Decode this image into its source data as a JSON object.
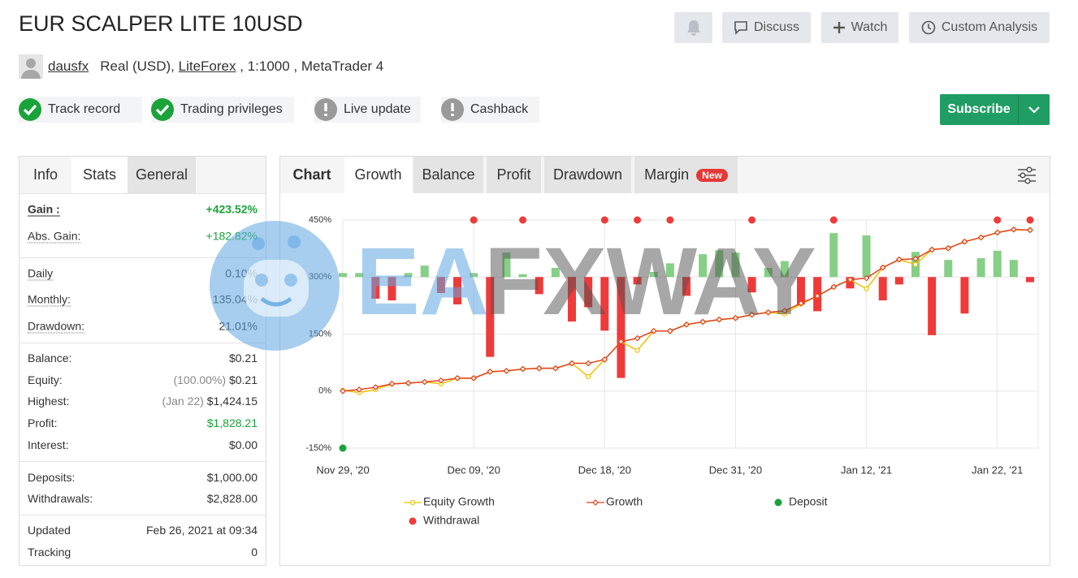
{
  "header": {
    "title": "EUR SCALPER LITE 10USD",
    "buttons": [
      "Discuss",
      "Watch",
      "Custom Analysis"
    ]
  },
  "account": {
    "user": "dausfx",
    "type": "Real (USD),",
    "broker": "LiteForex",
    "details": ", 1:1000 , MetaTrader 4"
  },
  "badges": [
    {
      "label": "Track record",
      "status": "ok"
    },
    {
      "label": "Trading privileges",
      "status": "ok"
    },
    {
      "label": "Live update",
      "status": "warn"
    },
    {
      "label": "Cashback",
      "status": "warn"
    }
  ],
  "subscribe": "Subscribe",
  "stats": {
    "tabs": [
      "Info",
      "Stats",
      "General"
    ],
    "groups": [
      [
        {
          "label": "Gain :",
          "value": "+423.52%",
          "color": "#1aa33b"
        },
        {
          "label": "Abs. Gain:",
          "value": "+182.82%",
          "color": "#1aa33b"
        }
      ],
      [
        {
          "label": "Daily",
          "value": "0.10%"
        },
        {
          "label": "Monthly:",
          "value": "135.04%"
        },
        {
          "label": "Drawdown:",
          "value": "21.01%"
        }
      ],
      [
        {
          "label": "Balance:",
          "value": "$0.21"
        },
        {
          "label": "Equity:",
          "note": "(100.00%)",
          "value": "$0.21"
        },
        {
          "label": "Highest:",
          "note": "(Jan 22)",
          "value": "$1,424.15"
        },
        {
          "label": "Profit:",
          "value": "$1,828.21",
          "color": "#1aa33b"
        },
        {
          "label": "Interest:",
          "value": "$0.00"
        }
      ],
      [
        {
          "label": "Deposits:",
          "value": "$1,000.00"
        },
        {
          "label": "Withdrawals:",
          "value": "$2,828.00"
        }
      ],
      [
        {
          "label": "Updated",
          "value": "Feb 26, 2021 at 09:34"
        },
        {
          "label": "Tracking",
          "value": "0"
        }
      ]
    ]
  },
  "chart_panel": {
    "tabs": [
      "Chart",
      "Growth",
      "Balance",
      "Profit",
      "Drawdown",
      "Margin"
    ],
    "new_badge": "New"
  },
  "watermark": [
    "EA",
    "FXWAY"
  ],
  "chart_data": {
    "type": "line",
    "categories": [
      "Nov 29, '20",
      null,
      null,
      null,
      null,
      null,
      null,
      null,
      "Dec 09, '20",
      null,
      null,
      null,
      null,
      null,
      null,
      null,
      "Dec 18, '20",
      null,
      null,
      null,
      null,
      null,
      null,
      null,
      "Dec 31, '20",
      null,
      null,
      null,
      null,
      null,
      null,
      null,
      "Jan 12, '21",
      null,
      null,
      null,
      null,
      null,
      null,
      null,
      "Jan 22, '21",
      null,
      null
    ],
    "ylim": [
      -150,
      450
    ],
    "yticks": [
      {
        "value": -150,
        "label": "-150%"
      },
      {
        "value": 0,
        "label": "0%"
      },
      {
        "value": 150,
        "label": "150%"
      },
      {
        "value": 300,
        "label": "300%"
      },
      {
        "value": 450,
        "label": "450%"
      }
    ],
    "y2lim": [
      -30,
      10
    ],
    "grid": true,
    "legend": "bottom",
    "bars": {
      "axis": "y2",
      "up_color": "#86cf86",
      "down_color": "#f03a3a",
      "values": [
        0.7,
        0.7,
        -3.8,
        -4.1,
        0.7,
        2.0,
        -2.8,
        -4.8,
        0.7,
        -14,
        4.3,
        0.5,
        -3,
        1.6,
        -7.8,
        -5.3,
        -9.4,
        -17.7,
        -1.3,
        0.9,
        2.4,
        -3.3,
        4.0,
        4.7,
        4.3,
        -2.7,
        1.6,
        2.8,
        -4.8,
        -6.0,
        7.7,
        -2.0,
        7.3,
        -4.1,
        -1.3,
        4.4,
        -10.2,
        3.0,
        -6.4,
        3.3,
        4.6,
        3.0,
        -0.9
      ]
    },
    "series": [
      {
        "name": "Equity Growth",
        "color": "#f2c200",
        "type": "line",
        "marker": "circle",
        "values": [
          2,
          -4,
          4,
          19,
          21,
          24,
          19,
          34,
          34,
          51,
          53,
          58,
          60,
          60,
          73,
          38,
          83,
          130,
          107,
          158,
          158,
          175,
          182,
          188,
          192,
          201,
          207,
          203,
          229,
          250,
          274,
          293,
          269,
          325,
          346,
          333,
          372,
          376,
          393,
          404,
          417,
          425,
          423.52
        ]
      },
      {
        "name": "Growth",
        "color": "#e2401c",
        "type": "line",
        "marker": "diamond",
        "values": [
          0,
          4,
          10,
          19,
          21,
          24,
          28,
          34,
          34,
          51,
          53,
          58,
          60,
          60,
          73,
          73,
          83,
          130,
          139,
          158,
          158,
          175,
          182,
          188,
          192,
          201,
          207,
          211,
          231,
          250,
          274,
          293,
          297,
          325,
          346,
          348,
          372,
          376,
          393,
          404,
          417,
          425,
          423.52
        ]
      },
      {
        "name": "Deposit",
        "color": "#1aa33b",
        "type": "scatter",
        "values": [
          -150,
          null,
          null,
          null,
          null,
          null,
          null,
          null,
          null,
          null,
          null,
          null,
          null,
          null,
          null,
          null,
          null,
          null,
          null,
          null,
          null,
          null,
          null,
          null,
          null,
          null,
          null,
          null,
          null,
          null,
          null,
          null,
          null,
          null,
          null,
          null,
          null,
          null,
          null,
          null,
          null,
          null,
          null
        ]
      },
      {
        "name": "Withdrawal",
        "color": "#ee3b3b",
        "type": "scatter",
        "values": [
          null,
          null,
          null,
          null,
          null,
          null,
          null,
          null,
          450,
          null,
          null,
          450,
          null,
          null,
          null,
          null,
          450,
          null,
          450,
          null,
          450,
          null,
          null,
          null,
          null,
          450,
          null,
          null,
          null,
          null,
          450,
          null,
          null,
          null,
          null,
          null,
          null,
          null,
          null,
          null,
          450,
          null,
          450
        ]
      }
    ]
  }
}
